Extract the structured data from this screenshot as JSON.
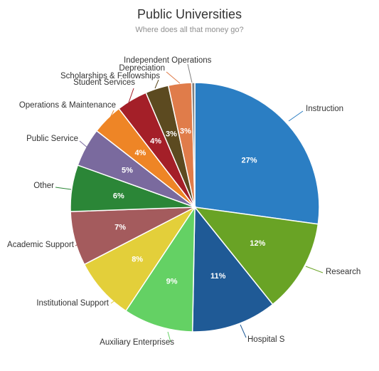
{
  "title": "Public Universities",
  "subtitle": "Where does all that money go?",
  "chart_data": {
    "type": "pie",
    "title": "Public Universities",
    "subtitle": "Where does all that money go?",
    "slices": [
      {
        "label": "Instruction",
        "value": 27,
        "display": "27%",
        "color": "#2b7ec3"
      },
      {
        "label": "Research",
        "value": 12,
        "display": "12%",
        "color": "#69a325"
      },
      {
        "label": "Hospital S",
        "value": 11,
        "display": "11%",
        "color": "#1f5a96"
      },
      {
        "label": "Auxiliary Enterprises",
        "value": 9,
        "display": "9%",
        "color": "#64d164"
      },
      {
        "label": "Institutional Support",
        "value": 8,
        "display": "8%",
        "color": "#e3cf3a"
      },
      {
        "label": "Academic Support",
        "value": 7,
        "display": "7%",
        "color": "#a45b5d"
      },
      {
        "label": "Other",
        "value": 6,
        "display": "6%",
        "color": "#2b8637"
      },
      {
        "label": "Public Service",
        "value": 5,
        "display": "5%",
        "color": "#7a6a9e"
      },
      {
        "label": "Operations & Maintenance",
        "value": 4,
        "display": "4%",
        "color": "#ee8526"
      },
      {
        "label": "Student Services",
        "value": 4,
        "display": "4%",
        "color": "#a41f28"
      },
      {
        "label": "Scholarships & Fellowships",
        "value": 3,
        "display": "3%",
        "color": "#5c4a20"
      },
      {
        "label": "Depreciation",
        "value": 3,
        "display": "3%",
        "color": "#e07c4a"
      },
      {
        "label": "Independent Operations",
        "value": 0.4,
        "display": "",
        "color": "#808080"
      }
    ]
  }
}
